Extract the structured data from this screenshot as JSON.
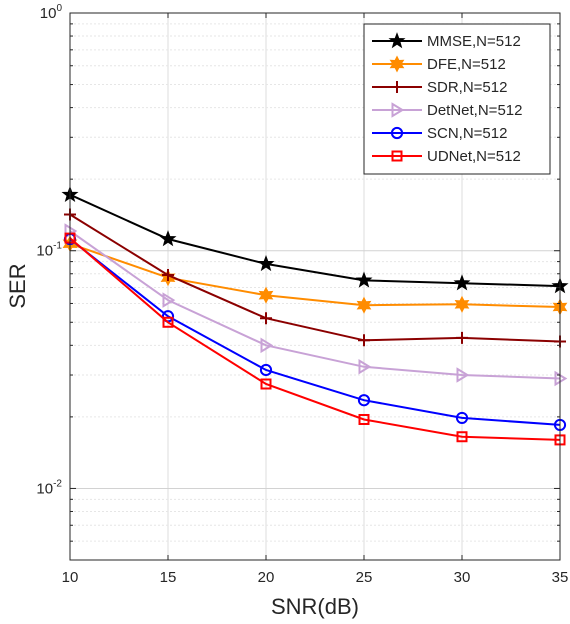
{
  "chart_data": {
    "type": "line",
    "title": "",
    "xlabel": "SNR(dB)",
    "ylabel": "SER",
    "yscale": "log",
    "xlim": [
      10,
      35
    ],
    "ylim": [
      0.005,
      1
    ],
    "x": [
      10,
      15,
      20,
      25,
      30,
      35
    ],
    "xticks": [
      "10",
      "15",
      "20",
      "25",
      "30",
      "35"
    ],
    "yticks": [
      {
        "base": "10",
        "exp": "0",
        "value": 1
      },
      {
        "base": "10",
        "exp": "-1",
        "value": 0.1
      },
      {
        "base": "10",
        "exp": "-2",
        "value": 0.01
      }
    ],
    "grid": true,
    "legend_position": "top-right",
    "series": [
      {
        "name": "MMSE,N=512",
        "color": "#000000",
        "marker": "star",
        "values": [
          0.172,
          0.112,
          0.088,
          0.075,
          0.073,
          0.071
        ]
      },
      {
        "name": "DFE,N=512",
        "color": "#ff8c00",
        "marker": "hexagram",
        "values": [
          0.107,
          0.077,
          0.065,
          0.059,
          0.0595,
          0.058
        ]
      },
      {
        "name": "SDR,N=512",
        "color": "#8b0000",
        "marker": "plus",
        "values": [
          0.142,
          0.079,
          0.052,
          0.042,
          0.043,
          0.0415
        ]
      },
      {
        "name": "DetNet,N=512",
        "color": "#c8a2d6",
        "marker": "triangle-right",
        "values": [
          0.121,
          0.062,
          0.04,
          0.0325,
          0.03,
          0.029
        ]
      },
      {
        "name": "SCN,N=512",
        "color": "#0000ff",
        "marker": "circle",
        "values": [
          0.112,
          0.053,
          0.0315,
          0.0235,
          0.0198,
          0.0185
        ]
      },
      {
        "name": "UDNet,N=512",
        "color": "#ff0000",
        "marker": "square",
        "values": [
          0.113,
          0.05,
          0.0275,
          0.0195,
          0.0165,
          0.016
        ]
      }
    ]
  }
}
